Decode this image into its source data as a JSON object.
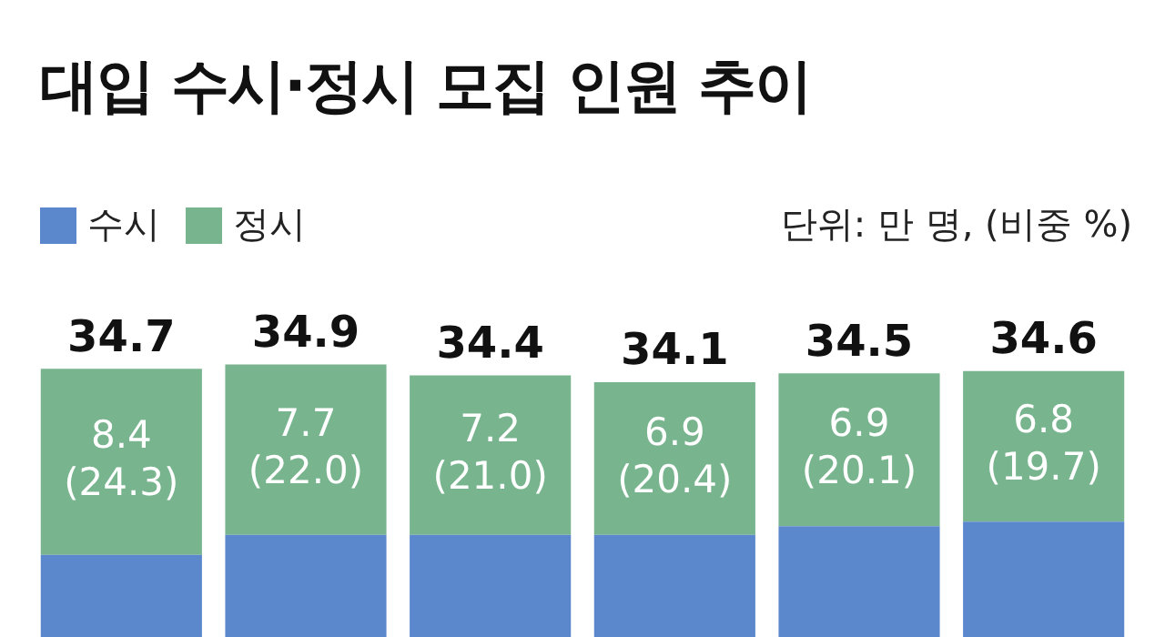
{
  "chart_data": {
    "type": "bar",
    "stacked": true,
    "title": "대입 수시·정시 모집 인원 추이",
    "annotations": [
      "단위: 만 명, (비중 %)"
    ],
    "categories": [
      null,
      null,
      null,
      null,
      null,
      null
    ],
    "series": [
      {
        "name": "수시",
        "color": "#5b88cc",
        "values": [
          26.3,
          27.2,
          27.2,
          27.2,
          27.6,
          27.8
        ]
      },
      {
        "name": "정시",
        "color": "#78b48e",
        "values": [
          8.4,
          7.7,
          7.2,
          6.9,
          6.9,
          6.8
        ],
        "value_labels": [
          "8.4 (24.3)",
          "7.7 (22.0)",
          "7.2 (21.0)",
          "6.9 (20.4)",
          "6.9 (20.1)",
          "6.8 (19.7)"
        ]
      }
    ],
    "totals": [
      "34.7",
      "34.9",
      "34.4",
      "34.1",
      "34.5",
      "34.6"
    ],
    "tick_labels": false,
    "legend": "top left"
  }
}
